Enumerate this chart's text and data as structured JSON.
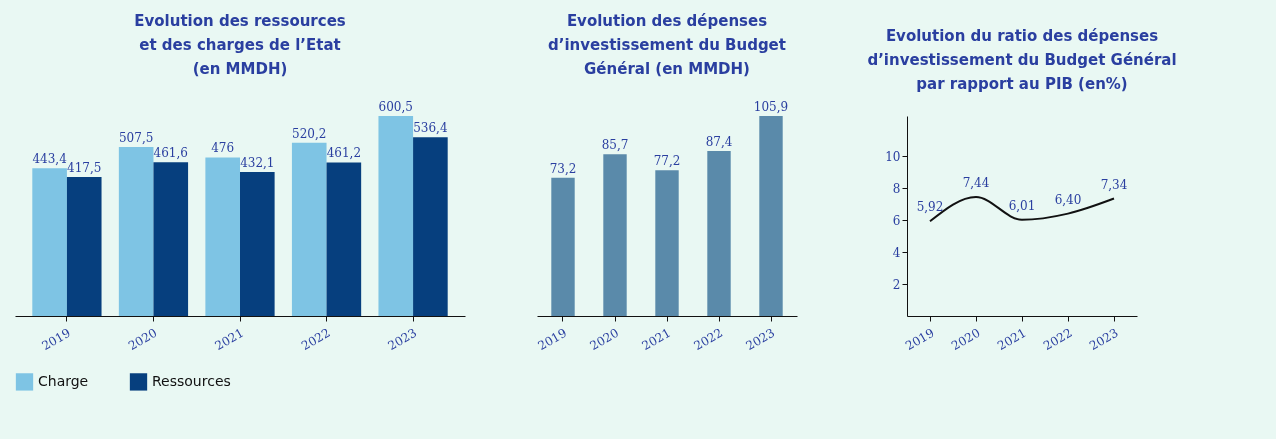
{
  "chart_data": [
    {
      "type": "bar",
      "title": "Evolution des ressources\net des charges de l’Etat\n(en MMDH)",
      "categories": [
        "2019",
        "2020",
        "2021",
        "2022",
        "2023"
      ],
      "series": [
        {
          "name": "Charge",
          "color": "#7ec4e4",
          "values": [
            443.4,
            507.5,
            476,
            520.2,
            600.5
          ],
          "value_labels": [
            "443,4",
            "507,5",
            "476",
            "520,2",
            "600,5"
          ]
        },
        {
          "name": "Ressources",
          "color": "#063f7e",
          "values": [
            417.5,
            461.6,
            432.1,
            461.2,
            536.4
          ],
          "value_labels": [
            "417,5",
            "461,6",
            "432,1",
            "461,2",
            "536,4"
          ]
        }
      ],
      "legend": "bottom left",
      "tick_labels": "x"
    },
    {
      "type": "bar",
      "title": "Evolution des dépenses\nd’investissement du Budget\nGénéral (en MMDH)",
      "categories": [
        "2019",
        "2020",
        "2021",
        "2022",
        "2023"
      ],
      "values": [
        73.2,
        85.7,
        77.2,
        87.4,
        105.9
      ],
      "value_labels": [
        "73,2",
        "85,7",
        "77,2",
        "87,4",
        "105,9"
      ],
      "color": "#5a8aaa",
      "tick_labels": "x"
    },
    {
      "type": "line",
      "title": "Evolution du ratio des dépenses\nd’investissement du Budget Général\npar rapport au PIB (en%)",
      "categories": [
        "2019",
        "2020",
        "2021",
        "2022",
        "2023"
      ],
      "values": [
        5.92,
        7.44,
        6.01,
        6.4,
        7.34
      ],
      "value_labels": [
        "5,92",
        "7,44",
        "6,01",
        "6,40",
        "7,34"
      ],
      "color": "#111111",
      "ylim": [
        0,
        12.5
      ],
      "yticks": [
        2,
        4,
        6,
        8,
        10
      ],
      "marker": "none"
    }
  ]
}
